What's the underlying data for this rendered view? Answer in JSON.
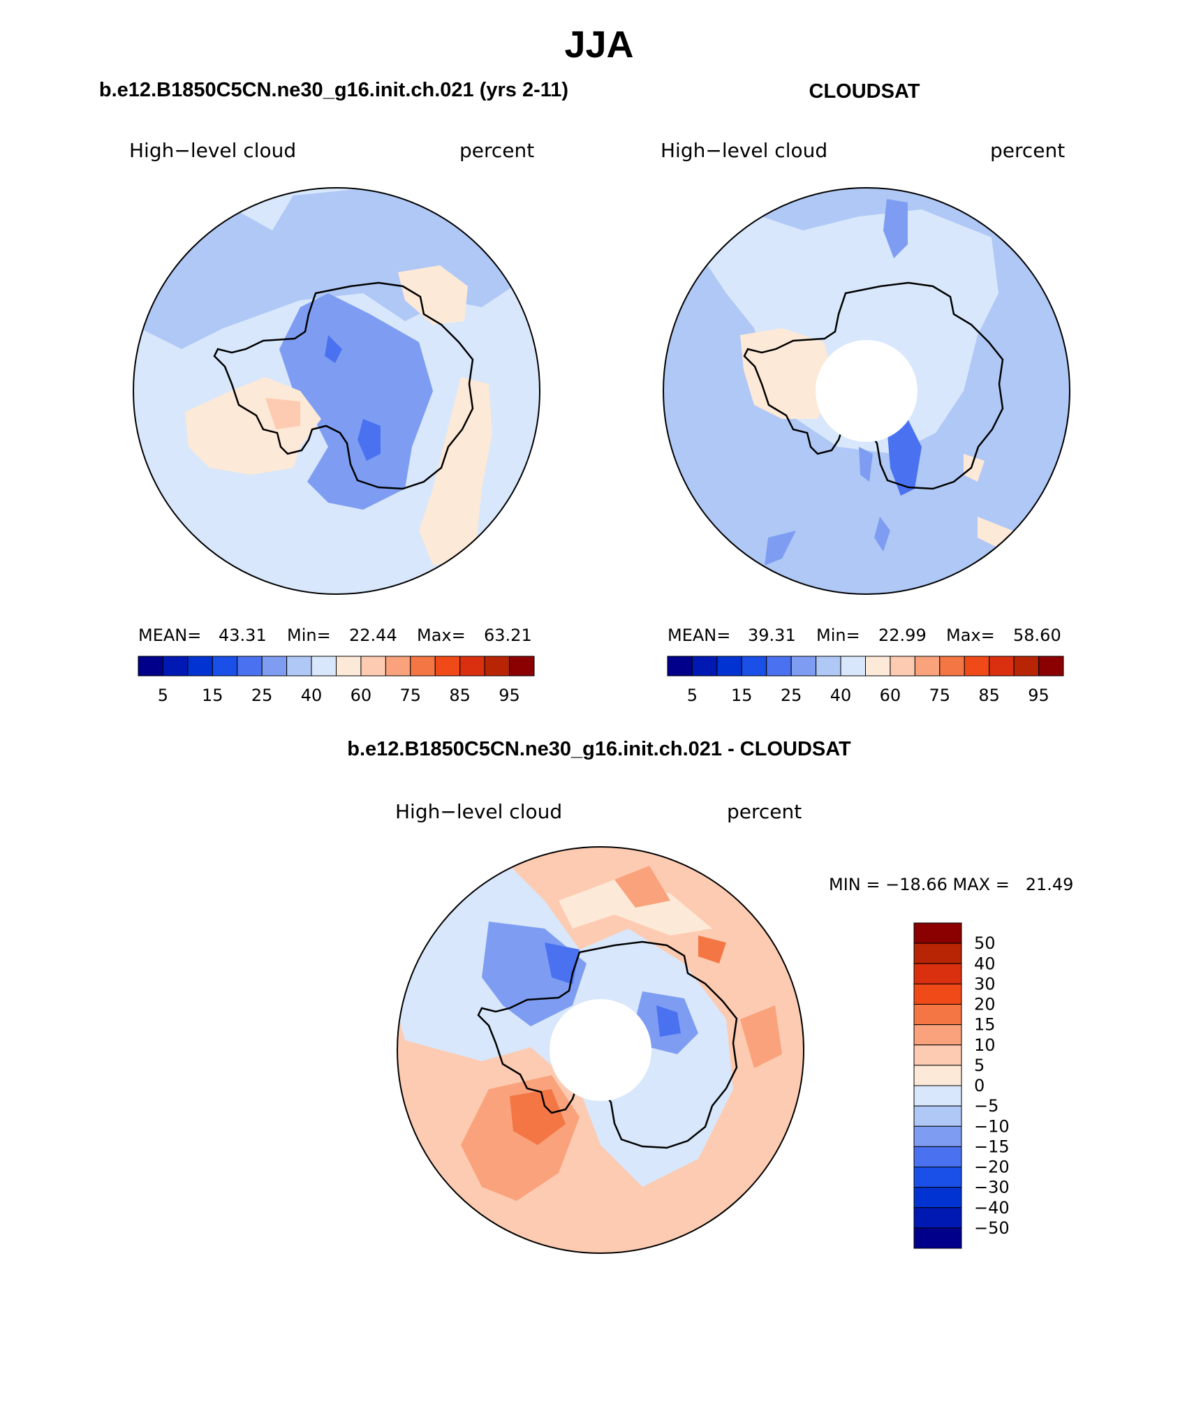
{
  "figure": {
    "season": "JJA",
    "model_panel_title": "b.e12.B1850C5CN.ne30_g16.init.ch.021 (yrs 2-11)",
    "obs_panel_title": "CLOUDSAT",
    "diff_panel_title": "b.e12.B1850C5CN.ne30_g16.init.ch.021 - CLOUDSAT"
  },
  "panels": [
    {
      "id": "model",
      "variable": "High−level cloud",
      "units": "percent",
      "stats": {
        "mean_label": "MEAN=",
        "mean": "43.31",
        "min_label": "Min=",
        "min": "22.44",
        "max_label": "Max=",
        "max": "63.21"
      }
    },
    {
      "id": "obs",
      "variable": "High−level cloud",
      "units": "percent",
      "stats": {
        "mean_label": "MEAN=",
        "mean": "39.31",
        "min_label": "Min=",
        "min": "22.99",
        "max_label": "Max=",
        "max": "58.60"
      }
    },
    {
      "id": "diff",
      "variable": "High−level cloud",
      "units": "percent",
      "stats_text": "MIN = −18.66 MAX =   21.49"
    }
  ],
  "colorbars": {
    "abs": {
      "colors": [
        "#00008b",
        "#0019b3",
        "#0033d1",
        "#1a4fe8",
        "#4a72f0",
        "#7e9df2",
        "#b0c8f6",
        "#d8e7fb",
        "#fde9d7",
        "#fdcbb1",
        "#f9a27c",
        "#f47645",
        "#f04a18",
        "#da3010",
        "#b82505",
        "#8b0000"
      ],
      "tick_labels": [
        "5",
        "15",
        "25",
        "40",
        "60",
        "75",
        "85",
        "95"
      ]
    },
    "diff": {
      "colors": [
        "#8b0000",
        "#b82505",
        "#da3010",
        "#f04a18",
        "#f47645",
        "#f9a27c",
        "#fdcbb1",
        "#fde9d7",
        "#d8e7fb",
        "#b0c8f6",
        "#7e9df2",
        "#4a72f0",
        "#1a4fe8",
        "#0033d1",
        "#0019b3",
        "#00008b"
      ],
      "tick_labels": [
        "50",
        "40",
        "30",
        "20",
        "15",
        "10",
        "5",
        "0",
        "−5",
        "−10",
        "−15",
        "−20",
        "−30",
        "−40",
        "−50"
      ]
    }
  },
  "map_colors": {
    "ocean_model": "#d8e7fb",
    "ocean_obs": "#b0c8f6",
    "diff_warm": "#fdcbb1",
    "diff_cold": "#b0c8f6",
    "missing": "#ffffff",
    "coast": "#000000"
  }
}
